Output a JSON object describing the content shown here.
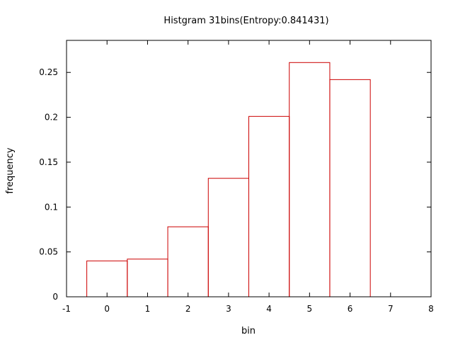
{
  "chart_data": {
    "type": "bar",
    "title": "Histgram 31bins(Entropy:0.841431)",
    "xlabel": "bin",
    "ylabel": "frequency",
    "xlim": [
      -1,
      8
    ],
    "ylim": [
      0,
      0.2857
    ],
    "xticks": [
      "-1",
      "0",
      "1",
      "2",
      "3",
      "4",
      "5",
      "6",
      "7",
      "8"
    ],
    "yticks": [
      "0",
      "0.05",
      "0.1",
      "0.15",
      "0.2",
      "0.25"
    ],
    "bar_width": 1,
    "bar_color": "#cc0000",
    "grid": false,
    "bars": [
      {
        "x": 0,
        "value": 0.04
      },
      {
        "x": 1,
        "value": 0.042
      },
      {
        "x": 2,
        "value": 0.078
      },
      {
        "x": 3,
        "value": 0.132
      },
      {
        "x": 4,
        "value": 0.201
      },
      {
        "x": 5,
        "value": 0.261
      },
      {
        "x": 6,
        "value": 0.242
      }
    ]
  }
}
